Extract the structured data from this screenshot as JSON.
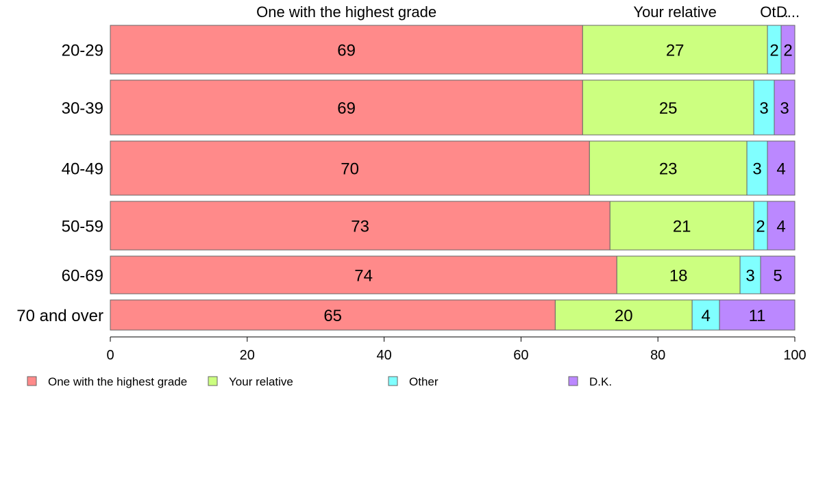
{
  "chart_data": {
    "type": "bar",
    "orientation": "horizontal",
    "stacked": true,
    "categories": [
      "20-29",
      "30-39",
      "40-49",
      "50-59",
      "60-69",
      "70 and over"
    ],
    "series": [
      {
        "name": "One with the highest grade",
        "top_label": "One with the highest grade",
        "color": "#ff8a8a",
        "values": [
          69,
          69,
          70,
          73,
          74,
          65
        ]
      },
      {
        "name": "Your relative",
        "top_label": "Your relative",
        "color": "#ccff80",
        "values": [
          27,
          25,
          23,
          21,
          18,
          20
        ]
      },
      {
        "name": "Other",
        "top_label": "Ot...",
        "color": "#80ffff",
        "values": [
          2,
          3,
          3,
          2,
          3,
          4
        ]
      },
      {
        "name": "D.K.",
        "top_label": "D...",
        "color": "#bb88ff",
        "values": [
          2,
          3,
          4,
          4,
          5,
          11
        ]
      }
    ],
    "xlim": [
      0,
      100
    ],
    "xticks": [
      0,
      20,
      40,
      60,
      80,
      100
    ],
    "grid": false,
    "legend_position": "bottom"
  }
}
